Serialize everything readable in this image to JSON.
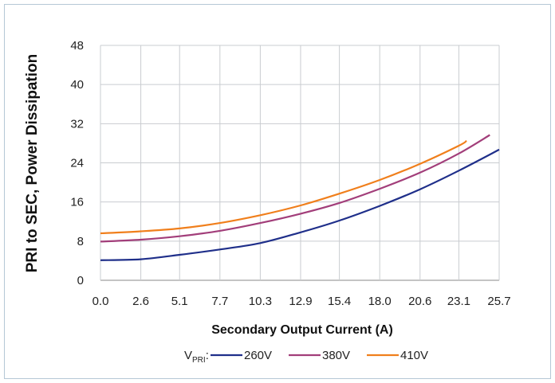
{
  "chart_data": {
    "type": "line",
    "title": "",
    "xlabel": "Secondary Output Current (A)",
    "ylabel": "PRI to SEC, Power Dissipation",
    "x_ticks": [
      "0.0",
      "2.6",
      "5.1",
      "7.7",
      "10.3",
      "12.9",
      "15.4",
      "18.0",
      "20.6",
      "23.1",
      "25.7"
    ],
    "x_tick_values": [
      0.0,
      2.6,
      5.1,
      7.7,
      10.3,
      12.9,
      15.4,
      18.0,
      20.6,
      23.1,
      25.7
    ],
    "y_ticks": [
      "0",
      "8",
      "16",
      "24",
      "32",
      "40",
      "48"
    ],
    "xlim": [
      0,
      25.7
    ],
    "ylim": [
      0,
      48
    ],
    "grid": true,
    "legend_placement": "bottom",
    "legend_prefix": "V",
    "legend_prefix_sub": "PRI",
    "legend_prefix_suffix": ":",
    "series": [
      {
        "name": "260V",
        "color": "#1f2f8a",
        "x": [
          0.0,
          2.6,
          5.1,
          7.7,
          10.3,
          12.9,
          15.4,
          18.0,
          20.6,
          23.1,
          25.7
        ],
        "y": [
          4.1,
          4.3,
          5.2,
          6.3,
          7.6,
          9.8,
          12.2,
          15.2,
          18.6,
          22.4,
          26.7
        ]
      },
      {
        "name": "380V",
        "color": "#a23e7a",
        "x": [
          0.0,
          2.6,
          5.1,
          7.7,
          10.3,
          12.9,
          15.4,
          18.0,
          20.6,
          23.1,
          25.1
        ],
        "y": [
          7.9,
          8.3,
          9.0,
          10.1,
          11.7,
          13.6,
          15.8,
          18.7,
          22.0,
          25.9,
          29.7
        ]
      },
      {
        "name": "410V",
        "color": "#f07f1c",
        "x": [
          0.0,
          2.6,
          5.1,
          7.7,
          10.3,
          12.9,
          15.4,
          18.0,
          20.6,
          23.1,
          23.6
        ],
        "y": [
          9.6,
          10.0,
          10.6,
          11.7,
          13.3,
          15.3,
          17.7,
          20.5,
          23.8,
          27.5,
          28.5
        ]
      }
    ]
  }
}
